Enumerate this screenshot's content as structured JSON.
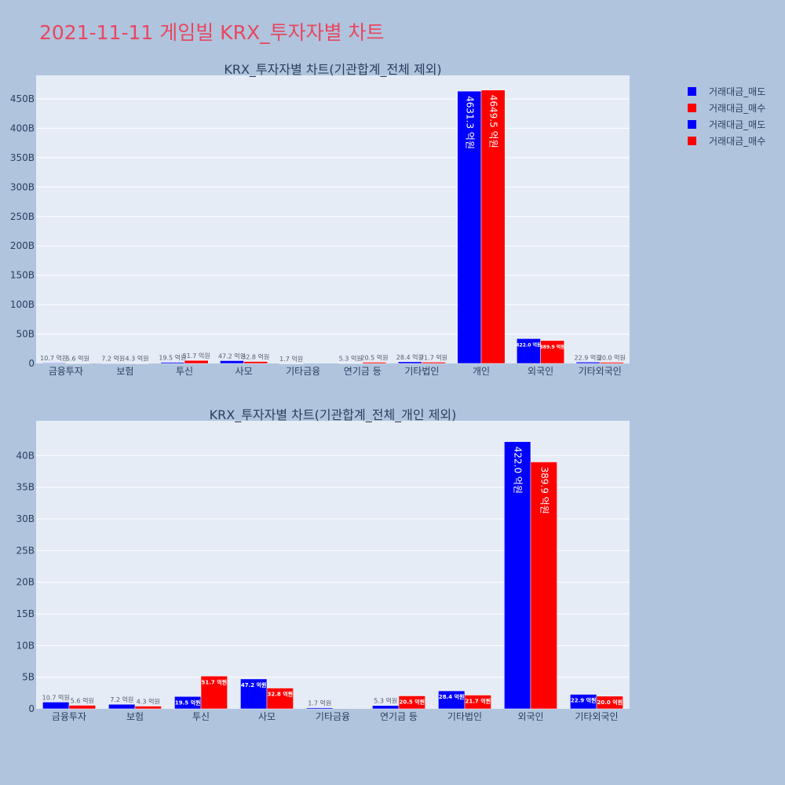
{
  "page_title": "2021-11-11 게임빌 KRX_투자자별 차트",
  "colors": {
    "sell": "#0000ff",
    "buy": "#ff0000",
    "plot_bg": "#e5ecf6",
    "page_bg": "#b0c4de",
    "text": "#2a3f5f"
  },
  "legend": [
    {
      "label": "거래대금_매도",
      "color": "#0000ff"
    },
    {
      "label": "거래대금_매수",
      "color": "#ff0000"
    },
    {
      "label": "거래대금_매도",
      "color": "#0000ff"
    },
    {
      "label": "거래대금_매수",
      "color": "#ff0000"
    }
  ],
  "chart_data": [
    {
      "type": "bar",
      "title": "KRX_투자자별 차트(기관합계_전체 제외)",
      "categories": [
        "금융투자",
        "보험",
        "투신",
        "사모",
        "기타금융",
        "연기금 등",
        "기타법인",
        "개인",
        "외국인",
        "기타외국인"
      ],
      "y_unit": "B",
      "yticks": [
        0,
        50,
        100,
        150,
        200,
        250,
        300,
        350,
        400,
        450
      ],
      "ytick_labels": [
        "0",
        "50B",
        "100B",
        "150B",
        "200B",
        "250B",
        "300B",
        "350B",
        "400B",
        "450B"
      ],
      "ylim": [
        0,
        490
      ],
      "series": [
        {
          "name": "거래대금_매도",
          "color": "#0000ff",
          "values": [
            1.07,
            0.72,
            1.95,
            4.72,
            0.17,
            0.53,
            2.84,
            463.13,
            42.2,
            2.29
          ],
          "labels": [
            "10.7 억원",
            "7.2 억원",
            "19.5 억원",
            "47.2 억원",
            "1.7 억원",
            "5.3 억원",
            "28.4 억원",
            "4631.3 억원",
            "422.0 억원",
            "22.9 억원"
          ]
        },
        {
          "name": "거래대금_매수",
          "color": "#ff0000",
          "values": [
            0.56,
            0.43,
            5.17,
            3.28,
            0,
            2.05,
            2.17,
            464.95,
            38.99,
            2.0
          ],
          "labels": [
            "5.6 억원",
            "4.3 억원",
            "51.7 억원",
            "32.8 억원",
            "",
            "20.5 억원",
            "21.7 억원",
            "4649.5 억원",
            "389.9 억원",
            "20.0 억원"
          ]
        }
      ]
    },
    {
      "type": "bar",
      "title": "KRX_투자자별 차트(기관합계_전체_개인 제외)",
      "categories": [
        "금융투자",
        "보험",
        "투신",
        "사모",
        "기타금융",
        "연기금 등",
        "기타법인",
        "외국인",
        "기타외국인"
      ],
      "y_unit": "B",
      "yticks": [
        0,
        5,
        10,
        15,
        20,
        25,
        30,
        35,
        40
      ],
      "ytick_labels": [
        "0",
        "5B",
        "10B",
        "15B",
        "20B",
        "25B",
        "30B",
        "35B",
        "40B"
      ],
      "ylim": [
        0,
        45.5
      ],
      "series": [
        {
          "name": "거래대금_매도",
          "color": "#0000ff",
          "values": [
            1.07,
            0.72,
            1.95,
            4.72,
            0.17,
            0.53,
            2.84,
            42.2,
            2.29
          ],
          "labels": [
            "10.7 억원",
            "7.2 억원",
            "19.5 억원",
            "47.2 억원",
            "1.7 억원",
            "5.3 억원",
            "28.4 억원",
            "422.0 억원",
            "22.9 억원"
          ]
        },
        {
          "name": "거래대금_매수",
          "color": "#ff0000",
          "values": [
            0.56,
            0.43,
            5.17,
            3.28,
            0,
            2.05,
            2.17,
            38.99,
            2.0
          ],
          "labels": [
            "5.6 억원",
            "4.3 억원",
            "51.7 억원",
            "32.8 억원",
            "",
            "20.5 억원",
            "21.7 억원",
            "389.9 억원",
            "20.0 억원"
          ]
        }
      ]
    }
  ]
}
